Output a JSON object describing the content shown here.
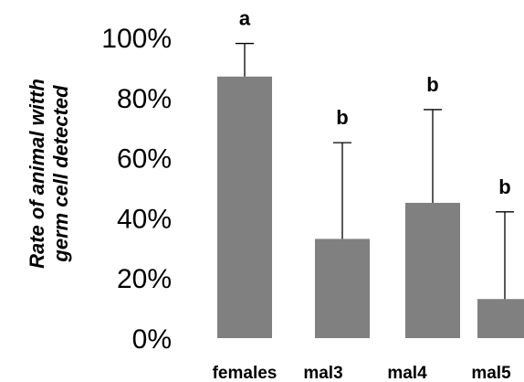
{
  "chart_data": {
    "type": "bar",
    "title": "",
    "xlabel": "",
    "ylabel_lines": [
      "Rate of animal witth",
      "germ cell detected"
    ],
    "ylim": [
      0,
      100
    ],
    "yticks": [
      0,
      20,
      40,
      60,
      80,
      100
    ],
    "ytick_labels": [
      "0%",
      "20%",
      "40%",
      "60%",
      "80%",
      "100%"
    ],
    "grid": false,
    "legend": "none",
    "categories": [
      "females",
      "mal3",
      "mal4",
      "mal5"
    ],
    "values": [
      87,
      33,
      45,
      13
    ],
    "error_upper": [
      98,
      65,
      76,
      42
    ],
    "significance_letters": [
      "a",
      "b",
      "b",
      "b"
    ],
    "bar_color": "#808080",
    "error_bar_color": "#000000"
  }
}
